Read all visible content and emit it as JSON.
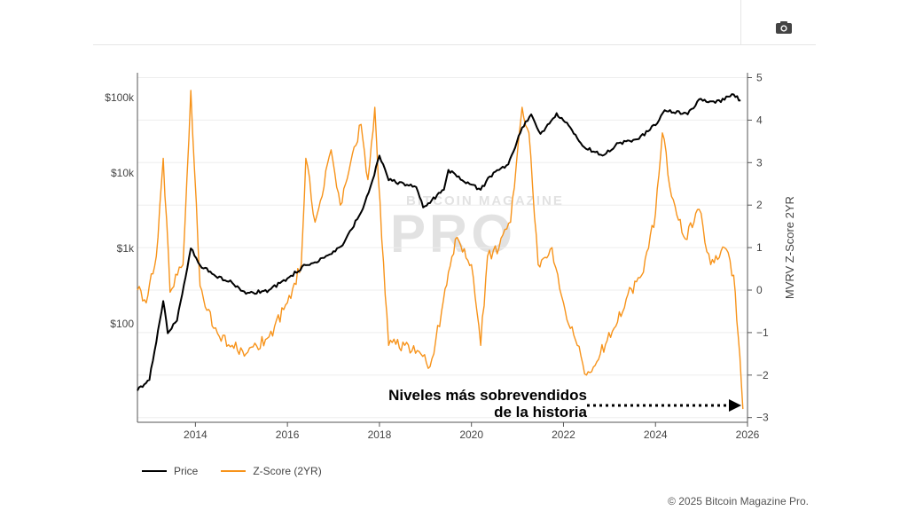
{
  "toolbar": {
    "camera_icon": "camera-icon"
  },
  "watermark": {
    "small": "BITCOIN MAGAZINE",
    "big": "PRO"
  },
  "annotation": {
    "line1": "Niveles más sobrevendidos",
    "line2": "de la historia"
  },
  "copyright": "© 2025 Bitcoin Magazine Pro.",
  "colors": {
    "price": "#000000",
    "zscore": "#f7931a"
  },
  "chart_data": {
    "type": "line",
    "title": "",
    "xlabel": "",
    "ylabel_left": "",
    "ylabel_right": "MVRV Z-Score 2YR",
    "xlim": [
      2012.74,
      2026
    ],
    "x_ticks": [
      "2014",
      "2016",
      "2018",
      "2020",
      "2022",
      "2024",
      "2026"
    ],
    "y_left": {
      "scale": "log",
      "range": [
        6,
        250000
      ],
      "ticks": [
        {
          "v": 100,
          "label": "$100"
        },
        {
          "v": 1000,
          "label": "$1k"
        },
        {
          "v": 10000,
          "label": "$10k"
        },
        {
          "v": 100000,
          "label": "$100k"
        }
      ]
    },
    "y_right": {
      "range": [
        -3,
        5
      ],
      "ticks": [
        "-3",
        "-2",
        "-1",
        "0",
        "1",
        "2",
        "3",
        "4",
        "5"
      ]
    },
    "legend": {
      "placement": "bottom-left",
      "entries": [
        "Price",
        "Z-Score (2YR)"
      ]
    },
    "series": [
      {
        "name": "Price",
        "axis": "left",
        "points": [
          [
            2012.74,
            13
          ],
          [
            2013.0,
            18
          ],
          [
            2013.3,
            200
          ],
          [
            2013.4,
            75
          ],
          [
            2013.6,
            110
          ],
          [
            2013.9,
            1000
          ],
          [
            2014.1,
            600
          ],
          [
            2014.4,
            450
          ],
          [
            2014.8,
            350
          ],
          [
            2015.1,
            250
          ],
          [
            2015.6,
            280
          ],
          [
            2016.0,
            400
          ],
          [
            2016.4,
            600
          ],
          [
            2016.8,
            750
          ],
          [
            2017.2,
            1100
          ],
          [
            2017.6,
            3000
          ],
          [
            2017.85,
            8000
          ],
          [
            2018.0,
            17000
          ],
          [
            2018.2,
            8000
          ],
          [
            2018.6,
            7000
          ],
          [
            2018.8,
            6500
          ],
          [
            2018.95,
            3500
          ],
          [
            2019.4,
            6000
          ],
          [
            2019.5,
            11000
          ],
          [
            2019.8,
            8000
          ],
          [
            2020.2,
            6000
          ],
          [
            2020.4,
            9000
          ],
          [
            2020.8,
            13000
          ],
          [
            2021.1,
            40000
          ],
          [
            2021.3,
            60000
          ],
          [
            2021.5,
            33000
          ],
          [
            2021.85,
            62000
          ],
          [
            2022.15,
            40000
          ],
          [
            2022.45,
            22000
          ],
          [
            2022.85,
            17000
          ],
          [
            2023.2,
            25000
          ],
          [
            2023.6,
            28000
          ],
          [
            2024.0,
            43000
          ],
          [
            2024.2,
            68000
          ],
          [
            2024.7,
            60000
          ],
          [
            2024.95,
            95000
          ],
          [
            2025.3,
            85000
          ],
          [
            2025.7,
            110000
          ],
          [
            2025.85,
            92000
          ]
        ]
      },
      {
        "name": "Z-Score (2YR)",
        "axis": "right",
        "points": [
          [
            2012.74,
            0
          ],
          [
            2012.93,
            -0.3
          ],
          [
            2013.15,
            0.8
          ],
          [
            2013.3,
            3.1
          ],
          [
            2013.45,
            -0.05
          ],
          [
            2013.73,
            0.6
          ],
          [
            2013.9,
            4.7
          ],
          [
            2014.1,
            0.1
          ],
          [
            2014.4,
            -0.9
          ],
          [
            2014.8,
            -1.3
          ],
          [
            2015.1,
            -1.5
          ],
          [
            2015.6,
            -1.1
          ],
          [
            2016.0,
            -0.3
          ],
          [
            2016.3,
            0.6
          ],
          [
            2016.4,
            3.1
          ],
          [
            2016.6,
            1.6
          ],
          [
            2016.95,
            3.3
          ],
          [
            2017.15,
            2.0
          ],
          [
            2017.6,
            3.9
          ],
          [
            2017.75,
            2.6
          ],
          [
            2017.9,
            4.3
          ],
          [
            2018.05,
            1.2
          ],
          [
            2018.2,
            -1.3
          ],
          [
            2018.55,
            -1.3
          ],
          [
            2018.9,
            -1.5
          ],
          [
            2019.1,
            -1.8
          ],
          [
            2019.35,
            -0.5
          ],
          [
            2019.65,
            1.2
          ],
          [
            2020.0,
            0.6
          ],
          [
            2020.2,
            -1.3
          ],
          [
            2020.35,
            0.8
          ],
          [
            2020.6,
            1.0
          ],
          [
            2020.85,
            1.6
          ],
          [
            2021.1,
            4.3
          ],
          [
            2021.25,
            3.7
          ],
          [
            2021.45,
            0.6
          ],
          [
            2021.75,
            1.0
          ],
          [
            2022.0,
            -0.3
          ],
          [
            2022.3,
            -1.3
          ],
          [
            2022.5,
            -2.0
          ],
          [
            2022.8,
            -1.5
          ],
          [
            2023.1,
            -0.9
          ],
          [
            2023.4,
            -0.1
          ],
          [
            2023.7,
            0.35
          ],
          [
            2024.0,
            1.8
          ],
          [
            2024.15,
            3.7
          ],
          [
            2024.35,
            2.2
          ],
          [
            2024.65,
            1.2
          ],
          [
            2024.95,
            1.9
          ],
          [
            2025.2,
            0.6
          ],
          [
            2025.5,
            1.0
          ],
          [
            2025.7,
            0.35
          ],
          [
            2025.8,
            -1.1
          ],
          [
            2025.9,
            -2.8
          ]
        ]
      }
    ]
  }
}
